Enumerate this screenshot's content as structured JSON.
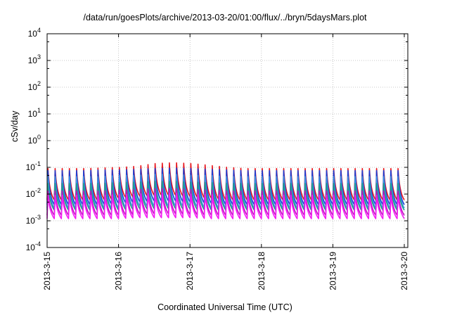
{
  "chart_data": {
    "type": "line",
    "title": "/data/run/goesPlots/archive/2013-03-20/01:00/flux/../bryn/5daysMars.plot",
    "xlabel": "Coordinated Universal Time (UTC)",
    "ylabel": "cSv/day",
    "yscale": "log",
    "ylim": [
      0.0001,
      10000
    ],
    "xlim": [
      "2013-03-15 00:00",
      "2013-03-20 02:00"
    ],
    "y_ticks": [
      {
        "base": "10",
        "exp": "4"
      },
      {
        "base": "10",
        "exp": "3"
      },
      {
        "base": "10",
        "exp": "2"
      },
      {
        "base": "10",
        "exp": "1"
      },
      {
        "base": "10",
        "exp": "0"
      },
      {
        "base": "10",
        "exp": "-1"
      },
      {
        "base": "10",
        "exp": "-2"
      },
      {
        "base": "10",
        "exp": "-3"
      },
      {
        "base": "10",
        "exp": "-4"
      }
    ],
    "x_ticks": [
      "2013-3-15",
      "2013-3-16",
      "2013-3-17",
      "2013-3-18",
      "2013-3-19",
      "2013-3-20"
    ],
    "grid": true,
    "legend": "none",
    "cycles_per_day": 10,
    "series": [
      {
        "color": "#e8151b",
        "peak": [
          0.09,
          0.09,
          0.09,
          0.095,
          0.1,
          0.11,
          0.14,
          0.15,
          0.14,
          0.12,
          0.1,
          0.09,
          0.09,
          0.09,
          0.09,
          0.09,
          0.09,
          0.09,
          0.09,
          0.09,
          0.09
        ],
        "trough": [
          0.006,
          0.006,
          0.006,
          0.006,
          0.007,
          0.008,
          0.009,
          0.009,
          0.008,
          0.007,
          0.006,
          0.006,
          0.006,
          0.006,
          0.006,
          0.006,
          0.006,
          0.006,
          0.006,
          0.006,
          0.006
        ]
      },
      {
        "color": "#1a3fd6",
        "peak": [
          0.075,
          0.075,
          0.075,
          0.08,
          0.08,
          0.085,
          0.09,
          0.095,
          0.09,
          0.085,
          0.08,
          0.075,
          0.075,
          0.075,
          0.075,
          0.075,
          0.075,
          0.075,
          0.075,
          0.075,
          0.075
        ],
        "trough": [
          0.004,
          0.004,
          0.004,
          0.004,
          0.0045,
          0.005,
          0.0055,
          0.0055,
          0.005,
          0.0045,
          0.004,
          0.004,
          0.004,
          0.004,
          0.004,
          0.004,
          0.004,
          0.004,
          0.004,
          0.004,
          0.004
        ]
      },
      {
        "color": "#3a95e6",
        "peak": [
          0.045,
          0.045,
          0.045,
          0.045,
          0.05,
          0.05,
          0.055,
          0.055,
          0.05,
          0.05,
          0.045,
          0.045,
          0.045,
          0.045,
          0.045,
          0.045,
          0.045,
          0.045,
          0.045,
          0.045,
          0.045
        ],
        "trough": [
          0.003,
          0.003,
          0.003,
          0.003,
          0.003,
          0.0035,
          0.0035,
          0.0035,
          0.0035,
          0.003,
          0.003,
          0.003,
          0.003,
          0.003,
          0.003,
          0.003,
          0.003,
          0.003,
          0.003,
          0.003,
          0.003
        ]
      },
      {
        "color": "#1e9e8a",
        "peak": [
          0.025,
          0.025,
          0.025,
          0.025,
          0.027,
          0.028,
          0.03,
          0.03,
          0.028,
          0.027,
          0.025,
          0.025,
          0.025,
          0.025,
          0.025,
          0.025,
          0.025,
          0.025,
          0.025,
          0.025,
          0.025
        ],
        "trough": [
          0.0025,
          0.0025,
          0.0025,
          0.0025,
          0.0025,
          0.0027,
          0.0028,
          0.0028,
          0.0027,
          0.0025,
          0.0025,
          0.0025,
          0.0025,
          0.0025,
          0.0025,
          0.0025,
          0.0025,
          0.0025,
          0.0025,
          0.0025,
          0.0025
        ]
      },
      {
        "color": "#c012c0",
        "peak": [
          0.013,
          0.013,
          0.013,
          0.013,
          0.014,
          0.015,
          0.016,
          0.016,
          0.015,
          0.014,
          0.013,
          0.013,
          0.013,
          0.013,
          0.013,
          0.013,
          0.013,
          0.013,
          0.013,
          0.013,
          0.013
        ],
        "trough": [
          0.0016,
          0.0016,
          0.0016,
          0.0016,
          0.0016,
          0.0017,
          0.0018,
          0.0018,
          0.0017,
          0.0016,
          0.0016,
          0.0016,
          0.0016,
          0.0016,
          0.0016,
          0.0016,
          0.0016,
          0.0016,
          0.0016,
          0.0016,
          0.0016
        ]
      },
      {
        "color": "#f41cf4",
        "peak": [
          0.009,
          0.009,
          0.009,
          0.009,
          0.0095,
          0.01,
          0.011,
          0.011,
          0.01,
          0.0095,
          0.009,
          0.009,
          0.009,
          0.009,
          0.009,
          0.009,
          0.009,
          0.009,
          0.009,
          0.009,
          0.009
        ],
        "trough": [
          0.0012,
          0.0012,
          0.0012,
          0.0012,
          0.0012,
          0.0013,
          0.0013,
          0.0013,
          0.0013,
          0.0012,
          0.0012,
          0.0012,
          0.0012,
          0.0012,
          0.0012,
          0.0012,
          0.0012,
          0.0012,
          0.0012,
          0.0012,
          0.0012
        ]
      }
    ]
  }
}
